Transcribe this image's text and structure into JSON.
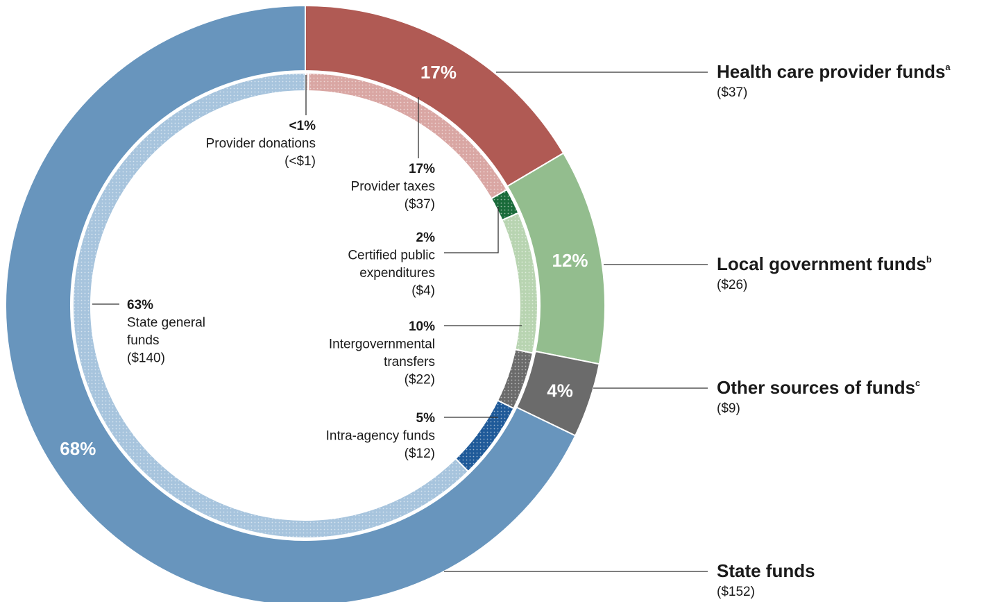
{
  "chart_data": {
    "type": "nested-donut",
    "outer": {
      "names": [
        "Health care provider funds",
        "Local government funds",
        "Other sources of funds",
        "State funds"
      ],
      "footnote_marks": [
        "a",
        "b",
        "c",
        null
      ],
      "percent_labels": [
        "17%",
        "12%",
        "4%",
        "68%"
      ],
      "values": [
        37,
        26,
        9,
        152
      ],
      "value_labels": [
        "($37)",
        "($26)",
        "($9)",
        "($152)"
      ],
      "colors": [
        "#b05a54",
        "#93bd8e",
        "#6b6b6b",
        "#6895bd"
      ]
    },
    "inner": {
      "names": [
        [
          "Provider donations"
        ],
        [
          "Provider taxes"
        ],
        [
          "Certified public",
          "expenditures"
        ],
        [
          "Intergovernmental",
          "transfers"
        ],
        null,
        [
          "Intra-agency funds"
        ],
        [
          "State general",
          "funds"
        ]
      ],
      "percent_labels": [
        "<1%",
        "17%",
        "2%",
        "10%",
        null,
        "5%",
        "63%"
      ],
      "values": [
        0.5,
        37,
        4,
        22,
        9,
        12,
        140
      ],
      "value_labels": [
        "(<$1)",
        "($37)",
        "($4)",
        "($22)",
        null,
        "($12)",
        "($140)"
      ],
      "colors": [
        "#e9c9c7",
        "#d9a6a3",
        "#1a6b3a",
        "#b8d4b1",
        "#6b6b6b",
        "#1f5a99",
        "#a7c4dd"
      ]
    }
  }
}
